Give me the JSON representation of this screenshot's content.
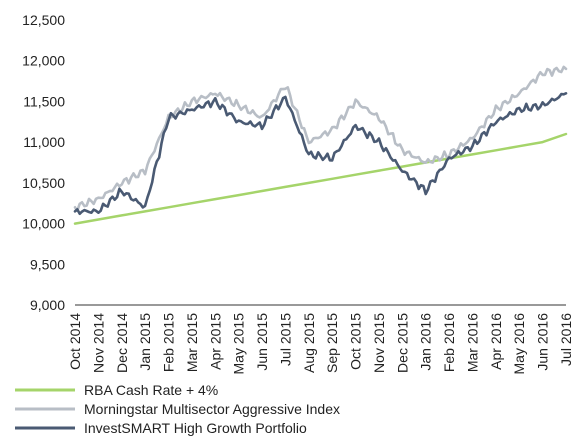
{
  "chart_data": {
    "type": "line",
    "title": "",
    "xlabel": "",
    "ylabel": "",
    "ylim": [
      9000,
      12500
    ],
    "yticks": [
      "9,000",
      "9,500",
      "10,000",
      "10,500",
      "11,000",
      "11,500",
      "12,000",
      "12,500"
    ],
    "categories": [
      "Oct 2014",
      "Nov 2014",
      "Dec 2014",
      "Jan 2015",
      "Feb 2015",
      "Mar 2015",
      "Apr 2015",
      "May 2015",
      "Jun 2015",
      "Jul 2015",
      "Aug 2015",
      "Sep 2015",
      "Oct 2015",
      "Nov 2015",
      "Dec 2015",
      "Jan 2016",
      "Feb 2016",
      "Mar 2016",
      "Apr 2016",
      "May 2016",
      "Jun 2016",
      "Jul 2016"
    ],
    "grid": false,
    "legend": "bottom-left",
    "series": [
      {
        "name": "RBA Cash Rate + 4%",
        "color": "#a5d46a",
        "values": [
          10000,
          10050,
          10100,
          10150,
          10200,
          10250,
          10300,
          10350,
          10400,
          10450,
          10500,
          10550,
          10600,
          10650,
          10700,
          10750,
          10800,
          10850,
          10900,
          10950,
          11000,
          11100
        ]
      },
      {
        "name": "Morningstar Multisector Aggressive Index",
        "color": "#b8bec6",
        "values": [
          10200,
          10300,
          10500,
          10650,
          11300,
          11500,
          11600,
          11450,
          11300,
          11700,
          11000,
          11150,
          11500,
          11300,
          10900,
          10750,
          10850,
          11050,
          11400,
          11600,
          11850,
          11900
        ]
      },
      {
        "name": "InvestSMART High Growth Portfolio",
        "color": "#4a5a73",
        "values": [
          10150,
          10150,
          10400,
          10200,
          11300,
          11400,
          11500,
          11250,
          11200,
          11550,
          10850,
          10800,
          11200,
          11000,
          10650,
          10400,
          10800,
          10950,
          11250,
          11400,
          11450,
          11600
        ]
      }
    ]
  }
}
